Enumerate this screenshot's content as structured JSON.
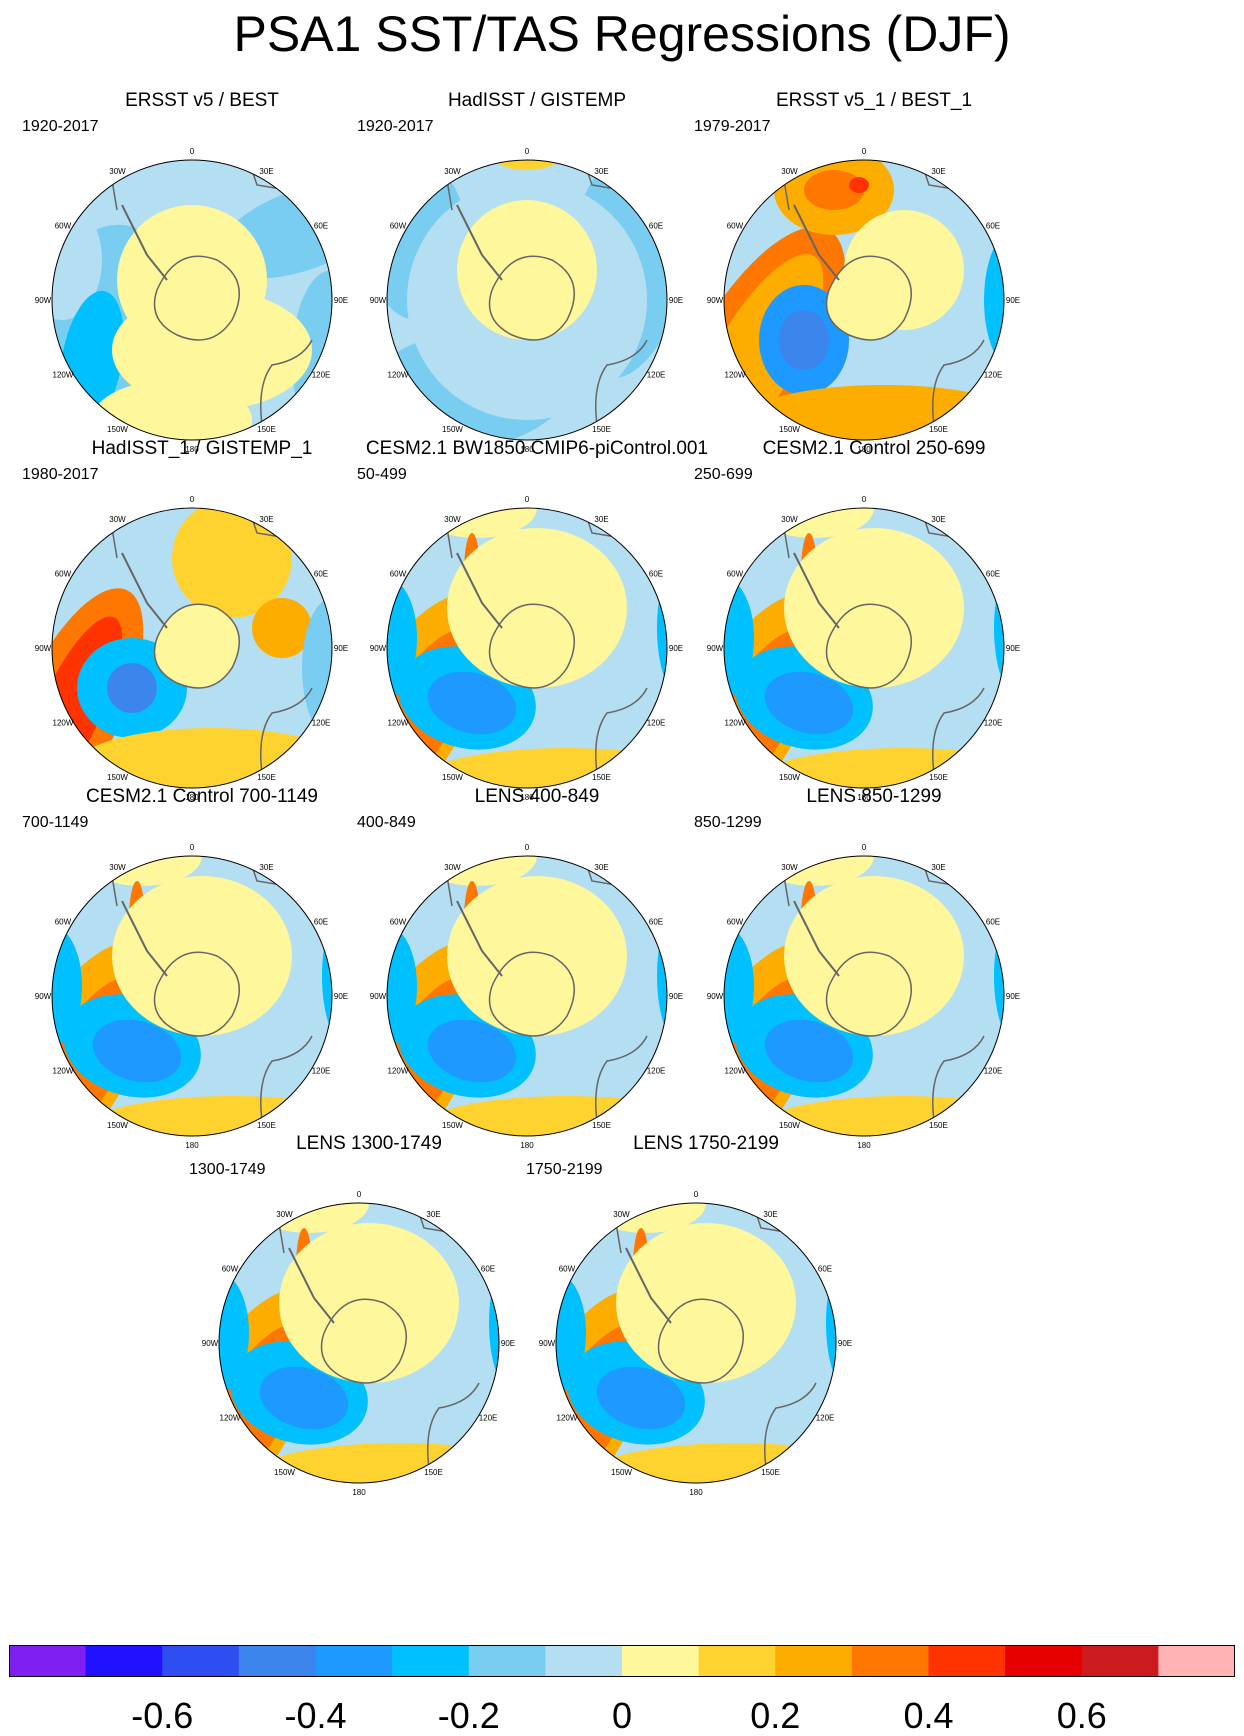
{
  "title": "PSA1 SST/TAS Regressions (DJF)",
  "longitude_labels": [
    "0",
    "30E",
    "60E",
    "90E",
    "120E",
    "150E",
    "180",
    "150W",
    "120W",
    "90W",
    "60W",
    "30W"
  ],
  "panels": [
    {
      "title": "ERSST v5 / BEST",
      "period": "1920-2017"
    },
    {
      "title": "HadISST / GISTEMP",
      "period": "1920-2017"
    },
    {
      "title": "ERSST v5_1 / BEST_1",
      "period": "1979-2017"
    },
    {
      "title": "HadISST_1 / GISTEMP_1",
      "period": "1980-2017"
    },
    {
      "title": "CESM2.1 BW1850 CMIP6-piControl.001",
      "period": "50-499"
    },
    {
      "title": "CESM2.1 Control 250-699",
      "period": "250-699"
    },
    {
      "title": "CESM2.1 Control 700-1149",
      "period": "700-1149"
    },
    {
      "title": "LENS 400-849",
      "period": "400-849"
    },
    {
      "title": "LENS 850-1299",
      "period": "850-1299"
    },
    {
      "title": "LENS 1300-1749",
      "period": "1300-1749"
    },
    {
      "title": "LENS 1750-2199",
      "period": "1750-2199"
    }
  ],
  "colorbar": {
    "colors": [
      "#7f1ff2",
      "#2211ff",
      "#2e4ef2",
      "#3c85ec",
      "#1e99ff",
      "#00c0ff",
      "#79cdf1",
      "#b4def1",
      "#fef79b",
      "#fed22f",
      "#fdac00",
      "#fe7700",
      "#ff3300",
      "#e60000",
      "#cc1b1f",
      "#ffb3b3"
    ],
    "tick_labels": [
      "-0.6",
      "-0.4",
      "-0.2",
      "0",
      "0.2",
      "0.4",
      "0.6"
    ]
  }
}
